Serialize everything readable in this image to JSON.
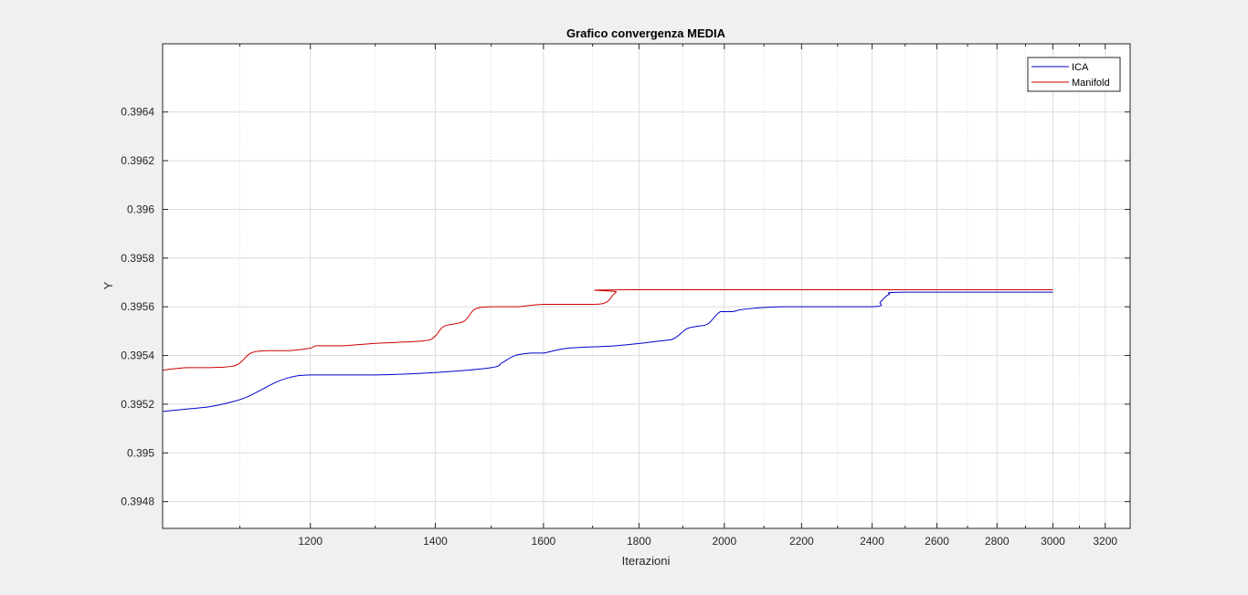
{
  "figure": {
    "background": "#f0f0f0",
    "axes_background": "#ffffff"
  },
  "chart_data": {
    "type": "line",
    "title": "Grafico convergenza MEDIA",
    "xlabel": "Iterazioni",
    "ylabel": "Y",
    "xscale": "log",
    "xlim": [
      1000,
      3300
    ],
    "ylim": [
      0.39469,
      0.39668
    ],
    "grid": true,
    "minor_grid": true,
    "legend_position": "top-right",
    "x_ticks": [
      {
        "value": 1200,
        "label": "1200"
      },
      {
        "value": 1400,
        "label": "1400"
      },
      {
        "value": 1600,
        "label": "1600"
      },
      {
        "value": 1800,
        "label": "1800"
      },
      {
        "value": 2000,
        "label": "2000"
      },
      {
        "value": 2200,
        "label": "2200"
      },
      {
        "value": 2400,
        "label": "2400"
      },
      {
        "value": 2600,
        "label": "2600"
      },
      {
        "value": 2800,
        "label": "2800"
      },
      {
        "value": 3000,
        "label": "3000"
      },
      {
        "value": 3200,
        "label": "3200"
      }
    ],
    "y_ticks": [
      {
        "value": 0.3948,
        "label": "0.3948"
      },
      {
        "value": 0.395,
        "label": "0.395"
      },
      {
        "value": 0.3952,
        "label": "0.3952"
      },
      {
        "value": 0.3954,
        "label": "0.3954"
      },
      {
        "value": 0.3956,
        "label": "0.3956"
      },
      {
        "value": 0.3958,
        "label": "0.3958"
      },
      {
        "value": 0.396,
        "label": "0.396"
      },
      {
        "value": 0.3962,
        "label": "0.3962"
      },
      {
        "value": 0.3964,
        "label": "0.3964"
      }
    ],
    "series": [
      {
        "name": "ICA",
        "color": "#0000cc",
        "points": [
          [
            1000,
            0.39517
          ],
          [
            1030,
            0.39518
          ],
          [
            1060,
            0.39519
          ],
          [
            1090,
            0.39521
          ],
          [
            1110,
            0.39523
          ],
          [
            1130,
            0.39526
          ],
          [
            1150,
            0.39529
          ],
          [
            1170,
            0.39531
          ],
          [
            1200,
            0.39532
          ],
          [
            1300,
            0.39532
          ],
          [
            1400,
            0.39533
          ],
          [
            1500,
            0.39535
          ],
          [
            1520,
            0.39537
          ],
          [
            1545,
            0.3954
          ],
          [
            1575,
            0.39541
          ],
          [
            1600,
            0.39541
          ],
          [
            1650,
            0.39543
          ],
          [
            1750,
            0.39544
          ],
          [
            1850,
            0.39546
          ],
          [
            1880,
            0.39547
          ],
          [
            1910,
            0.39551
          ],
          [
            1935,
            0.39552
          ],
          [
            1960,
            0.39553
          ],
          [
            1990,
            0.39558
          ],
          [
            2020,
            0.39558
          ],
          [
            2050,
            0.39559
          ],
          [
            2150,
            0.3956
          ],
          [
            2400,
            0.3956
          ],
          [
            2425,
            0.39562
          ],
          [
            2450,
            0.39565
          ],
          [
            2500,
            0.39566
          ],
          [
            3000,
            0.39566
          ]
        ]
      },
      {
        "name": "Manifold",
        "color": "#cc0000",
        "points": [
          [
            1000,
            0.39534
          ],
          [
            1030,
            0.39535
          ],
          [
            1060,
            0.39535
          ],
          [
            1095,
            0.39536
          ],
          [
            1115,
            0.39541
          ],
          [
            1140,
            0.39542
          ],
          [
            1170,
            0.39542
          ],
          [
            1200,
            0.39543
          ],
          [
            1210,
            0.39544
          ],
          [
            1250,
            0.39544
          ],
          [
            1300,
            0.39545
          ],
          [
            1380,
            0.39546
          ],
          [
            1400,
            0.39548
          ],
          [
            1415,
            0.39552
          ],
          [
            1450,
            0.39554
          ],
          [
            1470,
            0.39559
          ],
          [
            1500,
            0.3956
          ],
          [
            1550,
            0.3956
          ],
          [
            1600,
            0.39561
          ],
          [
            1700,
            0.39561
          ],
          [
            1730,
            0.39562
          ],
          [
            1750,
            0.39566
          ],
          [
            1780,
            0.39567
          ],
          [
            3000,
            0.39567
          ]
        ]
      }
    ]
  }
}
